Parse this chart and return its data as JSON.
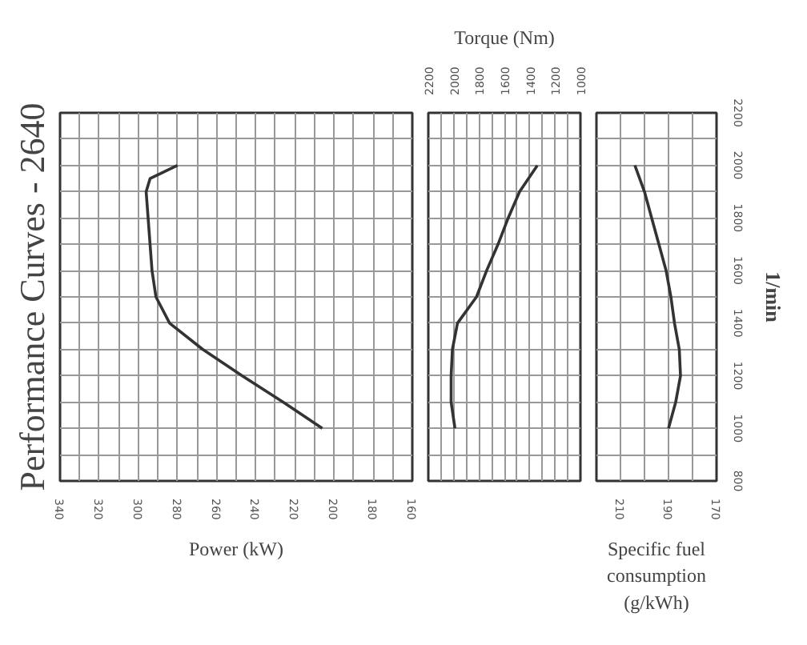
{
  "chart_data": [
    {
      "type": "line",
      "title": "Performance Curves - 2640",
      "xlabel": "Power (kW)",
      "grid": true,
      "tick_labels": "x",
      "x": [
        206,
        226,
        247,
        267,
        284,
        291,
        293,
        294,
        295,
        296,
        294,
        280
      ],
      "series": [
        {
          "color": "#333333",
          "values": [
            1000,
            1100,
            1200,
            1300,
            1400,
            1500,
            1600,
            1700,
            1800,
            1900,
            1950,
            2000
          ]
        }
      ],
      "xlim": [
        340,
        160
      ],
      "xticks": [
        340,
        {
          "value": 330,
          "label": null
        },
        320,
        {
          "value": 310,
          "label": null
        },
        300,
        {
          "value": 290,
          "label": null
        },
        280,
        {
          "value": 270,
          "label": null
        },
        260,
        {
          "value": 250,
          "label": null
        },
        240,
        {
          "value": 230,
          "label": null
        },
        220,
        {
          "value": 210,
          "label": null
        },
        200,
        {
          "value": 190,
          "label": null
        },
        180,
        {
          "value": 170,
          "label": null
        },
        160
      ],
      "ylim": [
        800,
        2200
      ],
      "yticks": [
        800,
        {
          "value": 900,
          "label": null
        },
        1000,
        {
          "value": 1100,
          "label": null
        },
        1200,
        {
          "value": 1300,
          "label": null
        },
        1400,
        {
          "value": 1500,
          "label": null
        },
        1600,
        {
          "value": 1700,
          "label": null
        },
        1800,
        {
          "value": 1900,
          "label": null
        },
        2000,
        {
          "value": 2100,
          "label": null
        },
        2200
      ]
    },
    {
      "type": "line",
      "xlabel": "Torque (Nm)",
      "grid": true,
      "tick_labels": "x",
      "x": [
        1990,
        2020,
        2020,
        2010,
        1970,
        1820,
        1740,
        1650,
        1570,
        1480,
        1340
      ],
      "series": [
        {
          "color": "#333333",
          "values": [
            1000,
            1100,
            1200,
            1300,
            1400,
            1500,
            1600,
            1700,
            1800,
            1900,
            2000
          ]
        }
      ],
      "xlim": [
        2200,
        1000
      ],
      "xticks": [
        2200,
        {
          "value": 2100,
          "label": null
        },
        2000,
        {
          "value": 1900,
          "label": null
        },
        1800,
        {
          "value": 1700,
          "label": null
        },
        1600,
        {
          "value": 1500,
          "label": null
        },
        1400,
        {
          "value": 1300,
          "label": null
        },
        1200,
        {
          "value": 1100,
          "label": null
        },
        1000
      ],
      "ylim": [
        800,
        2200
      ],
      "yticks": [
        800,
        {
          "value": 900,
          "label": null
        },
        1000,
        {
          "value": 1100,
          "label": null
        },
        1200,
        {
          "value": 1300,
          "label": null
        },
        1400,
        {
          "value": 1500,
          "label": null
        },
        1600,
        {
          "value": 1700,
          "label": null
        },
        1800,
        {
          "value": 1900,
          "label": null
        },
        2000,
        {
          "value": 2100,
          "label": null
        },
        2200
      ]
    },
    {
      "type": "line",
      "xlabel": "Specific fuel consumption (g/kWh)",
      "ylabel": "1/min",
      "grid": true,
      "x": [
        190,
        187,
        185,
        185.5,
        187.5,
        189,
        191,
        194,
        197,
        200,
        204
      ],
      "series": [
        {
          "color": "#333333",
          "values": [
            1000,
            1100,
            1200,
            1300,
            1400,
            1500,
            1600,
            1700,
            1800,
            1900,
            2000
          ]
        }
      ],
      "xlim": [
        220,
        170
      ],
      "xticks": [
        {
          "value": 220,
          "label": null
        },
        210,
        {
          "value": 200,
          "label": null
        },
        190,
        {
          "value": 180,
          "label": null
        },
        170
      ],
      "ylim": [
        800,
        2200
      ],
      "yticks": [
        800,
        {
          "value": 900,
          "label": null
        },
        1000,
        {
          "value": 1100,
          "label": null
        },
        1200,
        {
          "value": 1300,
          "label": null
        },
        1400,
        {
          "value": 1500,
          "label": null
        },
        1600,
        {
          "value": 1700,
          "label": null
        },
        1800,
        {
          "value": 1900,
          "label": null
        },
        2000,
        {
          "value": 2100,
          "label": null
        },
        2200
      ]
    }
  ]
}
